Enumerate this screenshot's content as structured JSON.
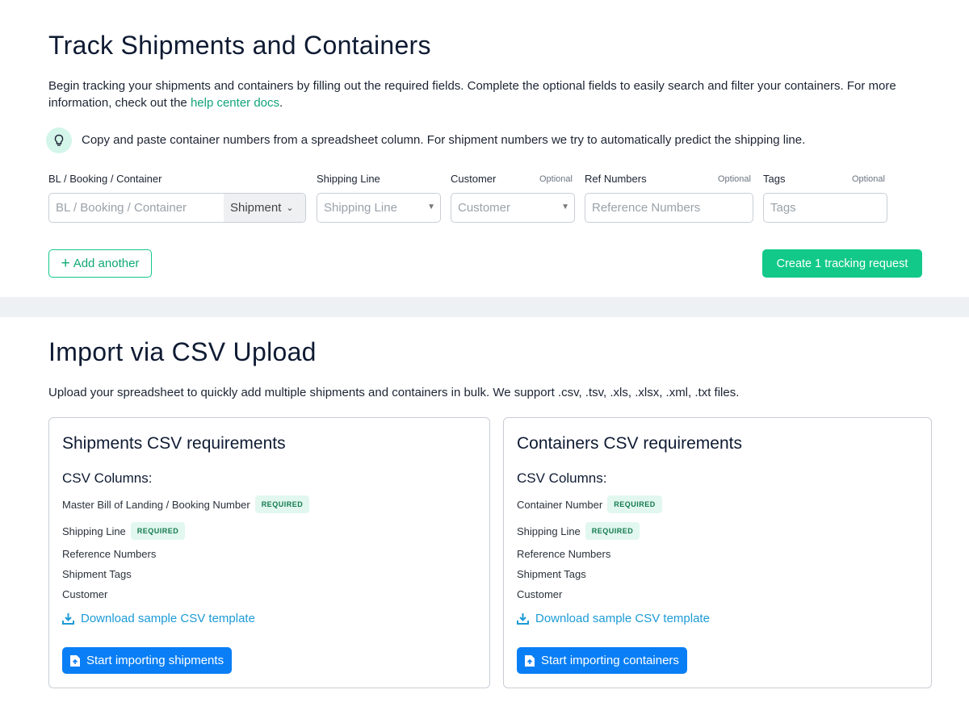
{
  "track": {
    "title": "Track Shipments and Containers",
    "intro": "Begin tracking your shipments and containers by filling out the required fields. Complete the optional fields to easily search and filter your containers. For more information, check out the ",
    "help_link": "help center docs",
    "intro_end": ".",
    "tip": "Copy and paste container numbers from a spreadsheet column. For shipment numbers we try to automatically predict the shipping line.",
    "fields": {
      "bl_label": "BL / Booking / Container",
      "bl_placeholder": "BL / Booking / Container",
      "type_value": "Shipment",
      "line_label": "Shipping Line",
      "line_placeholder": "Shipping Line",
      "customer_label": "Customer",
      "customer_placeholder": "Customer",
      "ref_label": "Ref Numbers",
      "ref_placeholder": "Reference Numbers",
      "tags_label": "Tags",
      "tags_placeholder": "Tags",
      "optional": "Optional"
    },
    "add_another": "Add another",
    "create": "Create 1 tracking request"
  },
  "import": {
    "title": "Import via CSV Upload",
    "intro": "Upload your spreadsheet to quickly add multiple shipments and containers in bulk. We support .csv, .tsv, .xls, .xlsx, .xml, .txt files.",
    "cards": [
      {
        "title": "Shipments CSV requirements",
        "columns_label": "CSV Columns:",
        "columns": [
          {
            "name": "Master Bill of Landing / Booking Number",
            "badge": "REQUIRED"
          },
          {
            "name": "Shipping Line",
            "badge": "REQUIRED"
          },
          {
            "name": "Reference Numbers"
          },
          {
            "name": "Shipment Tags"
          },
          {
            "name": "Customer"
          }
        ],
        "download": "Download sample CSV template",
        "button": "Start importing shipments"
      },
      {
        "title": "Containers CSV requirements",
        "columns_label": "CSV Columns:",
        "columns": [
          {
            "name": "Container Number",
            "badge": "REQUIRED"
          },
          {
            "name": "Shipping Line",
            "badge": "REQUIRED"
          },
          {
            "name": "Reference Numbers"
          },
          {
            "name": "Shipment Tags"
          },
          {
            "name": "Customer"
          }
        ],
        "download": "Download sample CSV template",
        "button": "Start importing containers"
      }
    ]
  },
  "colors": {
    "green": "#12c98a",
    "blue": "#0a7ff5",
    "link": "#1c9bd6"
  }
}
